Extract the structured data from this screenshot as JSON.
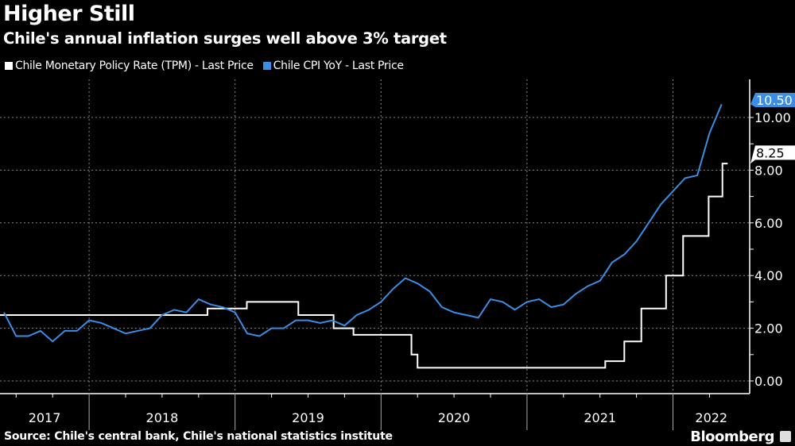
{
  "header": {
    "title": "Higher Still",
    "subtitle": "Chile's annual inflation surges well above 3% target"
  },
  "footer": {
    "source": "Source: Chile's central bank, Chile's national statistics institute",
    "brand": "Bloomberg"
  },
  "chart_data": {
    "type": "line",
    "title": "Higher Still",
    "subtitle": "Chile's annual inflation surges well above 3% target",
    "xlabel": "",
    "ylabel": "",
    "x_tick_labels": [
      "2017",
      "2018",
      "2019",
      "2020",
      "2021",
      "2022"
    ],
    "y_ticks": [
      "0.00",
      "2.00",
      "4.00",
      "6.00",
      "8.00",
      "10.00"
    ],
    "ylim": [
      0,
      10.5
    ],
    "grid": true,
    "legend_position": "top-left",
    "y_axis_side": "right",
    "series": [
      {
        "name": "Chile Monetary Policy Rate (TPM) - Last Price",
        "color": "#ffffff",
        "style": "step",
        "last_value_label": "8.25",
        "points": [
          [
            "2017-05-01",
            2.5
          ],
          [
            "2018-10-23",
            2.75
          ],
          [
            "2019-01-30",
            3.0
          ],
          [
            "2019-06-07",
            2.5
          ],
          [
            "2019-09-04",
            2.0
          ],
          [
            "2019-10-23",
            1.75
          ],
          [
            "2020-03-16",
            1.0
          ],
          [
            "2020-03-31",
            0.5
          ],
          [
            "2021-07-14",
            0.75
          ],
          [
            "2021-08-31",
            1.5
          ],
          [
            "2021-10-13",
            2.75
          ],
          [
            "2021-12-14",
            4.0
          ],
          [
            "2022-01-26",
            5.5
          ],
          [
            "2022-03-29",
            7.0
          ],
          [
            "2022-05-03",
            8.25
          ],
          [
            "2022-05-16",
            8.25
          ]
        ]
      },
      {
        "name": "Chile CPI YoY - Last Price",
        "color": "#3a8ee6",
        "style": "line",
        "last_value_label": "10.50",
        "x": [
          "2017-05",
          "2017-06",
          "2017-07",
          "2017-08",
          "2017-09",
          "2017-10",
          "2017-11",
          "2017-12",
          "2018-01",
          "2018-02",
          "2018-03",
          "2018-04",
          "2018-05",
          "2018-06",
          "2018-07",
          "2018-08",
          "2018-09",
          "2018-10",
          "2018-11",
          "2018-12",
          "2019-01",
          "2019-02",
          "2019-03",
          "2019-04",
          "2019-05",
          "2019-06",
          "2019-07",
          "2019-08",
          "2019-09",
          "2019-10",
          "2019-11",
          "2019-12",
          "2020-01",
          "2020-02",
          "2020-03",
          "2020-04",
          "2020-05",
          "2020-06",
          "2020-07",
          "2020-08",
          "2020-09",
          "2020-10",
          "2020-11",
          "2020-12",
          "2021-01",
          "2021-02",
          "2021-03",
          "2021-04",
          "2021-05",
          "2021-06",
          "2021-07",
          "2021-08",
          "2021-09",
          "2021-10",
          "2021-11",
          "2021-12",
          "2022-01",
          "2022-02",
          "2022-03",
          "2022-04"
        ],
        "values": [
          2.6,
          1.7,
          1.7,
          1.9,
          1.5,
          1.9,
          1.9,
          2.3,
          2.2,
          2.0,
          1.8,
          1.9,
          2.0,
          2.5,
          2.7,
          2.6,
          3.1,
          2.9,
          2.8,
          2.6,
          1.8,
          1.7,
          2.0,
          2.0,
          2.3,
          2.3,
          2.2,
          2.3,
          2.1,
          2.5,
          2.7,
          3.0,
          3.5,
          3.9,
          3.7,
          3.4,
          2.8,
          2.6,
          2.5,
          2.4,
          3.1,
          3.0,
          2.7,
          3.0,
          3.1,
          2.8,
          2.9,
          3.3,
          3.6,
          3.8,
          4.5,
          4.8,
          5.3,
          6.0,
          6.7,
          7.2,
          7.7,
          7.8,
          9.4,
          10.5
        ]
      }
    ]
  }
}
